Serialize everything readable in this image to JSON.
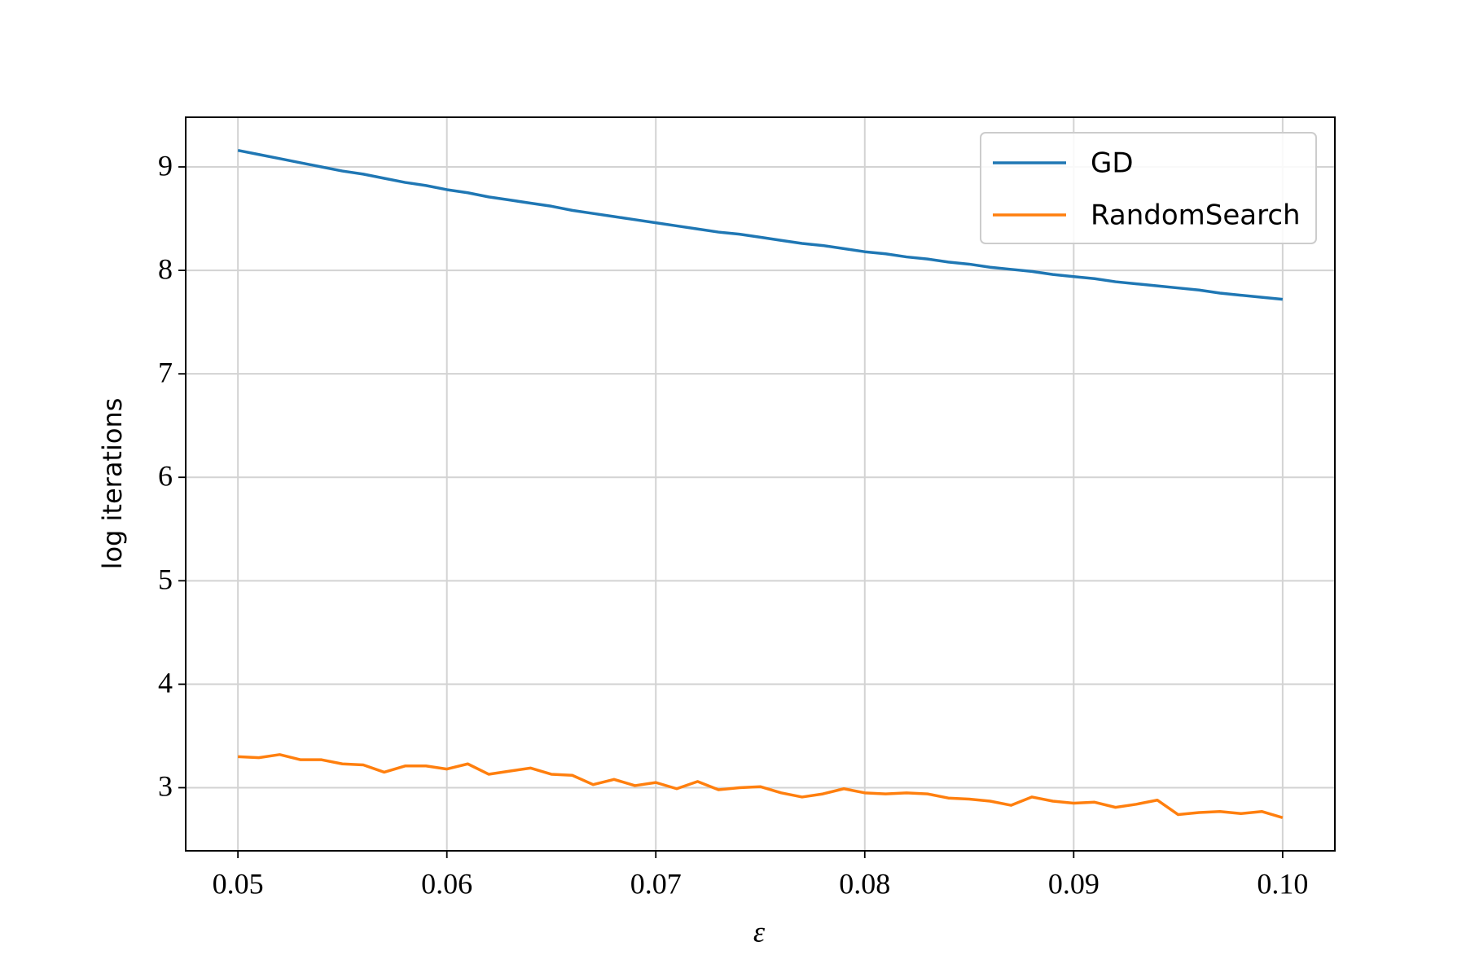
{
  "chart_data": {
    "type": "line",
    "xlabel": "ε",
    "ylabel": "log iterations",
    "x": [
      0.05,
      0.051,
      0.052,
      0.053,
      0.054,
      0.055,
      0.056,
      0.057,
      0.058,
      0.059,
      0.06,
      0.061,
      0.062,
      0.063,
      0.064,
      0.065,
      0.066,
      0.067,
      0.068,
      0.069,
      0.07,
      0.071,
      0.072,
      0.073,
      0.074,
      0.075,
      0.076,
      0.077,
      0.078,
      0.079,
      0.08,
      0.081,
      0.082,
      0.083,
      0.084,
      0.085,
      0.086,
      0.087,
      0.088,
      0.089,
      0.09,
      0.091,
      0.092,
      0.093,
      0.094,
      0.095,
      0.096,
      0.097,
      0.098,
      0.099,
      0.1
    ],
    "series": [
      {
        "name": "GD",
        "color": "#1f77b4",
        "values": [
          9.16,
          9.12,
          9.08,
          9.04,
          9.0,
          8.96,
          8.93,
          8.89,
          8.85,
          8.82,
          8.78,
          8.75,
          8.71,
          8.68,
          8.65,
          8.62,
          8.58,
          8.55,
          8.52,
          8.49,
          8.46,
          8.43,
          8.4,
          8.37,
          8.35,
          8.32,
          8.29,
          8.26,
          8.24,
          8.21,
          8.18,
          8.16,
          8.13,
          8.11,
          8.08,
          8.06,
          8.03,
          8.01,
          7.99,
          7.96,
          7.94,
          7.92,
          7.89,
          7.87,
          7.85,
          7.83,
          7.81,
          7.78,
          7.76,
          7.74,
          7.72
        ]
      },
      {
        "name": "RandomSearch",
        "color": "#ff7f0e",
        "values": [
          3.3,
          3.29,
          3.32,
          3.27,
          3.27,
          3.23,
          3.22,
          3.15,
          3.21,
          3.21,
          3.18,
          3.23,
          3.13,
          3.16,
          3.19,
          3.13,
          3.12,
          3.03,
          3.08,
          3.02,
          3.05,
          2.99,
          3.06,
          2.98,
          3.0,
          3.01,
          2.95,
          2.91,
          2.94,
          2.99,
          2.95,
          2.94,
          2.95,
          2.94,
          2.9,
          2.89,
          2.87,
          2.83,
          2.91,
          2.87,
          2.85,
          2.86,
          2.81,
          2.84,
          2.88,
          2.74,
          2.76,
          2.77,
          2.75,
          2.77,
          2.71
        ]
      }
    ],
    "xlim": [
      0.0475,
      0.1025
    ],
    "ylim": [
      2.39,
      9.48
    ],
    "xticks": [
      0.05,
      0.06,
      0.07,
      0.08,
      0.09,
      {
        "value": 0.1,
        "label": "0.10"
      }
    ],
    "yticks": [
      3,
      4,
      5,
      6,
      7,
      8,
      9
    ],
    "grid": true,
    "legend": "upper right"
  }
}
